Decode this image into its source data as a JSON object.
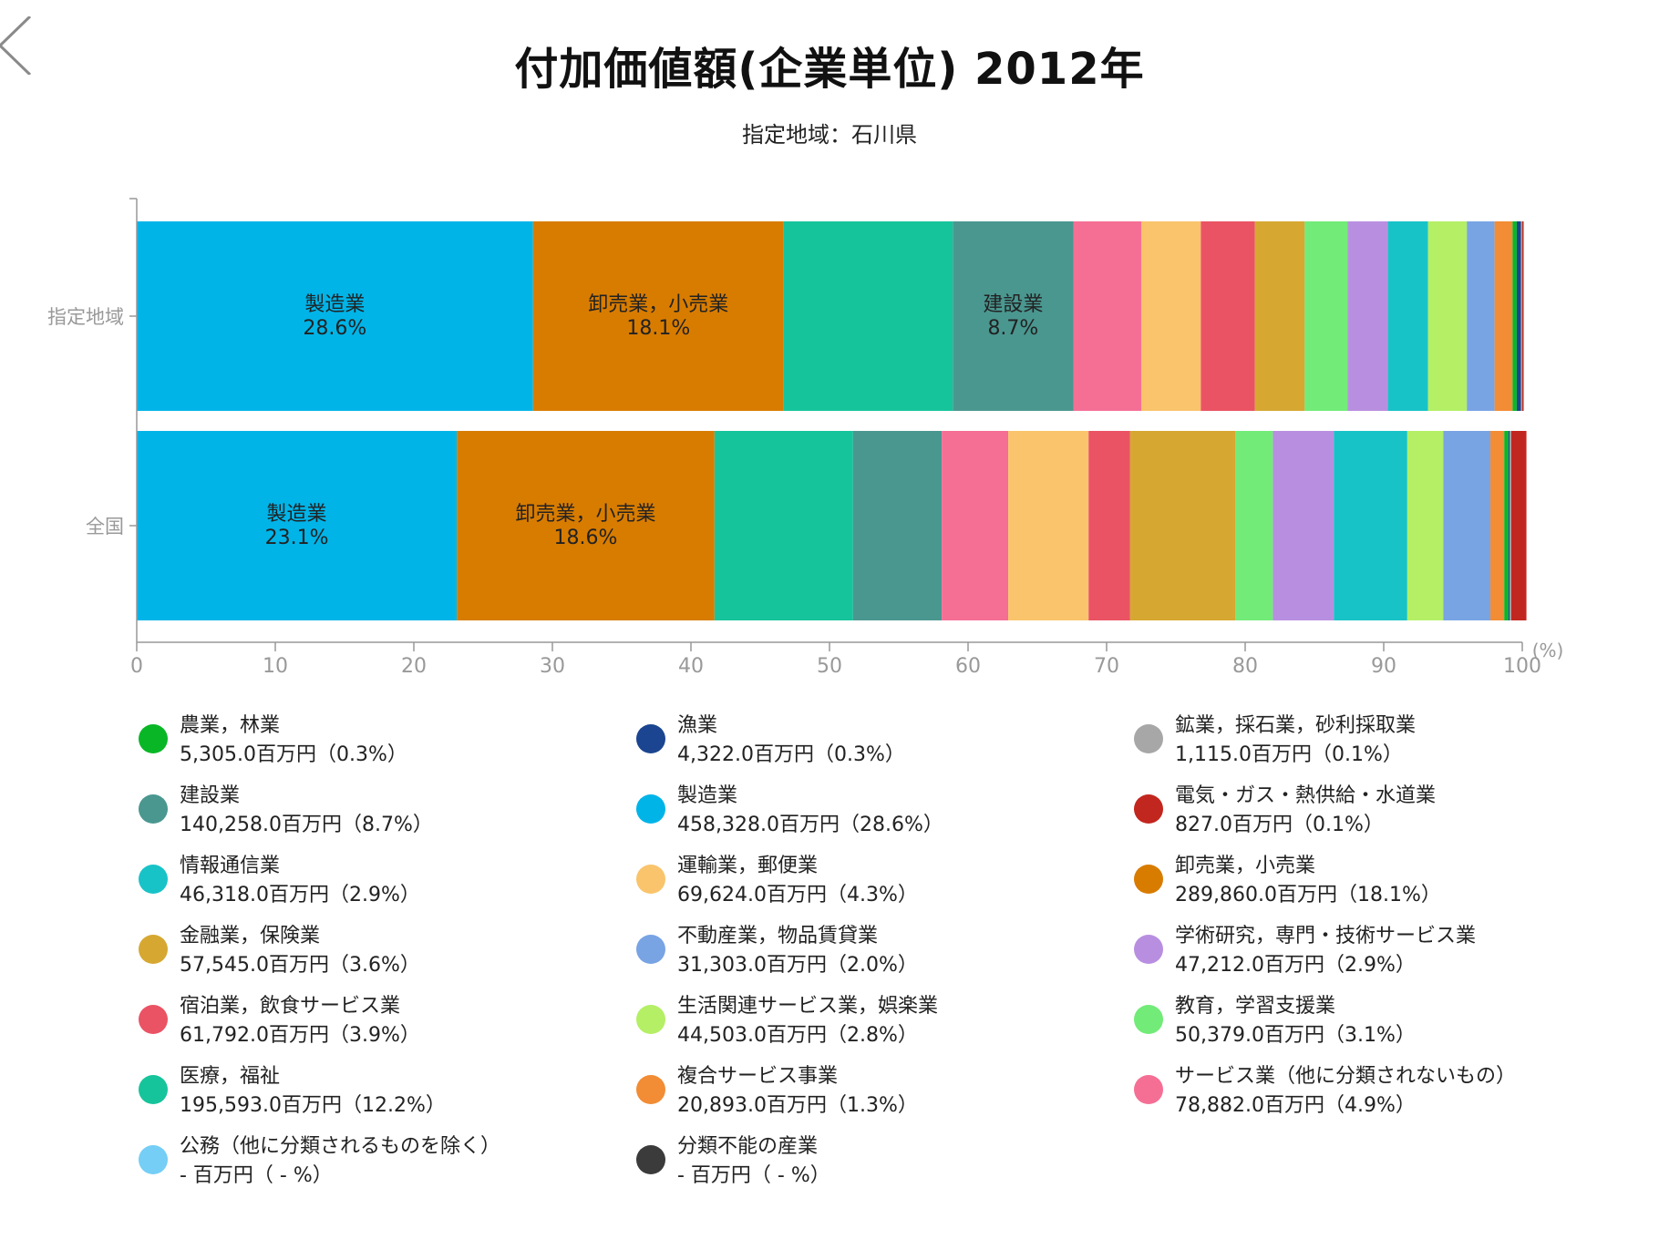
{
  "title": "付加価値額(企業単位) 2012年",
  "subtitle": "指定地域：石川県",
  "chart_data": {
    "type": "bar",
    "orientation": "horizontal",
    "stacked": true,
    "unit": "(%)",
    "xlim": [
      0,
      100
    ],
    "x_ticks": [
      0,
      10,
      20,
      30,
      40,
      50,
      60,
      70,
      80,
      90,
      100
    ],
    "categories": [
      "指定地域",
      "全国"
    ],
    "series": [
      {
        "name": "製造業",
        "color": "#00b4e8",
        "values": [
          28.6,
          23.1
        ]
      },
      {
        "name": "卸売業，小売業",
        "color": "#d87c00",
        "values": [
          18.1,
          18.6
        ]
      },
      {
        "name": "医療，福祉",
        "color": "#16c49b",
        "values": [
          12.2,
          10.0
        ]
      },
      {
        "name": "建設業",
        "color": "#4a9790",
        "values": [
          8.7,
          6.4
        ]
      },
      {
        "name": "サービス業（他に分類されないもの）",
        "color": "#f56f95",
        "values": [
          4.9,
          4.8
        ]
      },
      {
        "name": "運輸業，郵便業",
        "color": "#f9c46b",
        "values": [
          4.3,
          5.8
        ]
      },
      {
        "name": "宿泊業，飲食サービス業",
        "color": "#ea5364",
        "values": [
          3.9,
          3.0
        ]
      },
      {
        "name": "金融業，保険業",
        "color": "#d6a832",
        "values": [
          3.6,
          7.6
        ]
      },
      {
        "name": "教育，学習支援業",
        "color": "#72eb78",
        "values": [
          3.1,
          2.7
        ]
      },
      {
        "name": "学術研究，専門・技術サービス業",
        "color": "#b88fe0",
        "values": [
          2.9,
          4.4
        ]
      },
      {
        "name": "情報通信業",
        "color": "#18c3c8",
        "values": [
          2.9,
          5.3
        ]
      },
      {
        "name": "生活関連サービス業，娯楽業",
        "color": "#b4ef66",
        "values": [
          2.8,
          2.6
        ]
      },
      {
        "name": "不動産業，物品賃貸業",
        "color": "#78a4e4",
        "values": [
          2.0,
          3.4
        ]
      },
      {
        "name": "複合サービス事業",
        "color": "#f28c35",
        "values": [
          1.3,
          1.0
        ]
      },
      {
        "name": "農業，林業",
        "color": "#09b726",
        "values": [
          0.3,
          0.3
        ]
      },
      {
        "name": "漁業",
        "color": "#1b4590",
        "values": [
          0.3,
          0.1
        ]
      },
      {
        "name": "鉱業，採石業，砂利採取業",
        "color": "#a7a7a7",
        "values": [
          0.1,
          0.1
        ]
      },
      {
        "name": "電気・ガス・熱供給・水道業",
        "color": "#c2271f",
        "values": [
          0.1,
          1.1
        ]
      }
    ],
    "bar_labels": [
      {
        "category": 0,
        "series": 0,
        "name": "製造業",
        "value": "28.6%"
      },
      {
        "category": 0,
        "series": 1,
        "name": "卸売業，小売業",
        "value": "18.1%"
      },
      {
        "category": 0,
        "series": 3,
        "name": "建設業",
        "value": "8.7%"
      },
      {
        "category": 1,
        "series": 0,
        "name": "製造業",
        "value": "23.1%"
      },
      {
        "category": 1,
        "series": 1,
        "name": "卸売業，小売業",
        "value": "18.6%"
      }
    ]
  },
  "legend": [
    {
      "name": "農業，林業",
      "value": "5,305.0百万円（0.3%）",
      "color": "#09b726"
    },
    {
      "name": "漁業",
      "value": "4,322.0百万円（0.3%）",
      "color": "#1b4590"
    },
    {
      "name": "鉱業，採石業，砂利採取業",
      "value": "1,115.0百万円（0.1%）",
      "color": "#a7a7a7"
    },
    {
      "name": "建設業",
      "value": "140,258.0百万円（8.7%）",
      "color": "#4a9790"
    },
    {
      "name": "製造業",
      "value": "458,328.0百万円（28.6%）",
      "color": "#00b4e8"
    },
    {
      "name": "電気・ガス・熱供給・水道業",
      "value": "827.0百万円（0.1%）",
      "color": "#c2271f"
    },
    {
      "name": "情報通信業",
      "value": "46,318.0百万円（2.9%）",
      "color": "#18c3c8"
    },
    {
      "name": "運輸業，郵便業",
      "value": "69,624.0百万円（4.3%）",
      "color": "#f9c46b"
    },
    {
      "name": "卸売業，小売業",
      "value": "289,860.0百万円（18.1%）",
      "color": "#d87c00"
    },
    {
      "name": "金融業，保険業",
      "value": "57,545.0百万円（3.6%）",
      "color": "#d6a832"
    },
    {
      "name": "不動産業，物品賃貸業",
      "value": "31,303.0百万円（2.0%）",
      "color": "#78a4e4"
    },
    {
      "name": "学術研究，専門・技術サービス業",
      "value": "47,212.0百万円（2.9%）",
      "color": "#b88fe0"
    },
    {
      "name": "宿泊業，飲食サービス業",
      "value": "61,792.0百万円（3.9%）",
      "color": "#ea5364"
    },
    {
      "name": "生活関連サービス業，娯楽業",
      "value": "44,503.0百万円（2.8%）",
      "color": "#b4ef66"
    },
    {
      "name": "教育，学習支援業",
      "value": "50,379.0百万円（3.1%）",
      "color": "#72eb78"
    },
    {
      "name": "医療，福祉",
      "value": "195,593.0百万円（12.2%）",
      "color": "#16c49b"
    },
    {
      "name": "複合サービス事業",
      "value": "20,893.0百万円（1.3%）",
      "color": "#f28c35"
    },
    {
      "name": "サービス業（他に分類されないもの）",
      "value": "78,882.0百万円（4.9%）",
      "color": "#f56f95"
    },
    {
      "name": "公務（他に分類されるものを除く）",
      "value": "- 百万円（ - %）",
      "color": "#74cef6"
    },
    {
      "name": "分類不能の産業",
      "value": "- 百万円（ - %）",
      "color": "#3b3b3b"
    }
  ]
}
